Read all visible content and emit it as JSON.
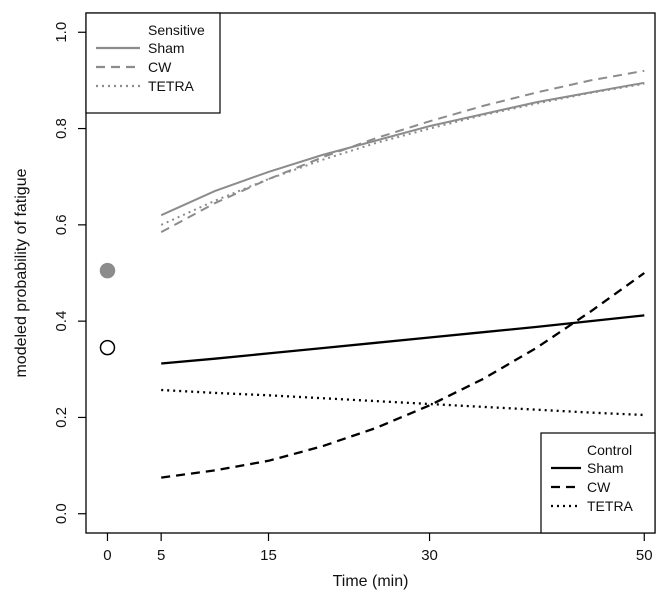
{
  "chart_data": {
    "type": "line",
    "xlabel": "Time (min)",
    "ylabel": "modeled probability of fatigue",
    "xlim": [
      -2,
      51
    ],
    "ylim": [
      -0.04,
      1.04
    ],
    "x_ticks": [
      0,
      5,
      15,
      30,
      50
    ],
    "y_ticks": [
      "0.0",
      "0.2",
      "0.4",
      "0.6",
      "0.8",
      "1.0"
    ],
    "x_tick_labels": [
      "0",
      "5",
      "15",
      "30",
      "50"
    ],
    "grid": false,
    "groups": [
      {
        "title": "Sensitive",
        "legend_position": "top-left",
        "color": "#8c8c8c",
        "baseline_point": {
          "x": 0,
          "y": 0.505,
          "marker": "filled-circle"
        },
        "series": [
          {
            "name": "Sham",
            "dash": "solid",
            "x": [
              5,
              10,
              15,
              20,
              25,
              30,
              35,
              40,
              45,
              50
            ],
            "values": [
              0.62,
              0.67,
              0.71,
              0.745,
              0.775,
              0.805,
              0.83,
              0.855,
              0.875,
              0.895
            ]
          },
          {
            "name": "CW",
            "dash": "dashed",
            "x": [
              5,
              10,
              15,
              20,
              25,
              30,
              35,
              40,
              45,
              50
            ],
            "values": [
              0.585,
              0.645,
              0.695,
              0.74,
              0.78,
              0.815,
              0.847,
              0.875,
              0.9,
              0.92
            ]
          },
          {
            "name": "TETRA",
            "dash": "dotted",
            "x": [
              5,
              10,
              15,
              20,
              25,
              30,
              35,
              40,
              45,
              50
            ],
            "values": [
              0.6,
              0.65,
              0.695,
              0.735,
              0.77,
              0.8,
              0.828,
              0.852,
              0.874,
              0.893
            ]
          }
        ]
      },
      {
        "title": "Control",
        "legend_position": "bottom-right",
        "color": "#000000",
        "baseline_point": {
          "x": 0,
          "y": 0.345,
          "marker": "open-circle"
        },
        "series": [
          {
            "name": "Sham",
            "dash": "solid",
            "x": [
              5,
              10,
              15,
              20,
              25,
              30,
              35,
              40,
              45,
              50
            ],
            "values": [
              0.312,
              0.322,
              0.333,
              0.344,
              0.355,
              0.366,
              0.377,
              0.388,
              0.4,
              0.412
            ]
          },
          {
            "name": "CW",
            "dash": "dashed",
            "x": [
              5,
              10,
              15,
              20,
              25,
              30,
              35,
              40,
              45,
              50
            ],
            "values": [
              0.075,
              0.09,
              0.11,
              0.14,
              0.178,
              0.225,
              0.28,
              0.345,
              0.42,
              0.5
            ]
          },
          {
            "name": "TETRA",
            "dash": "dotted",
            "x": [
              5,
              10,
              15,
              20,
              25,
              30,
              35,
              40,
              45,
              50
            ],
            "values": [
              0.257,
              0.251,
              0.246,
              0.24,
              0.234,
              0.228,
              0.222,
              0.216,
              0.21,
              0.205
            ]
          }
        ]
      }
    ]
  }
}
